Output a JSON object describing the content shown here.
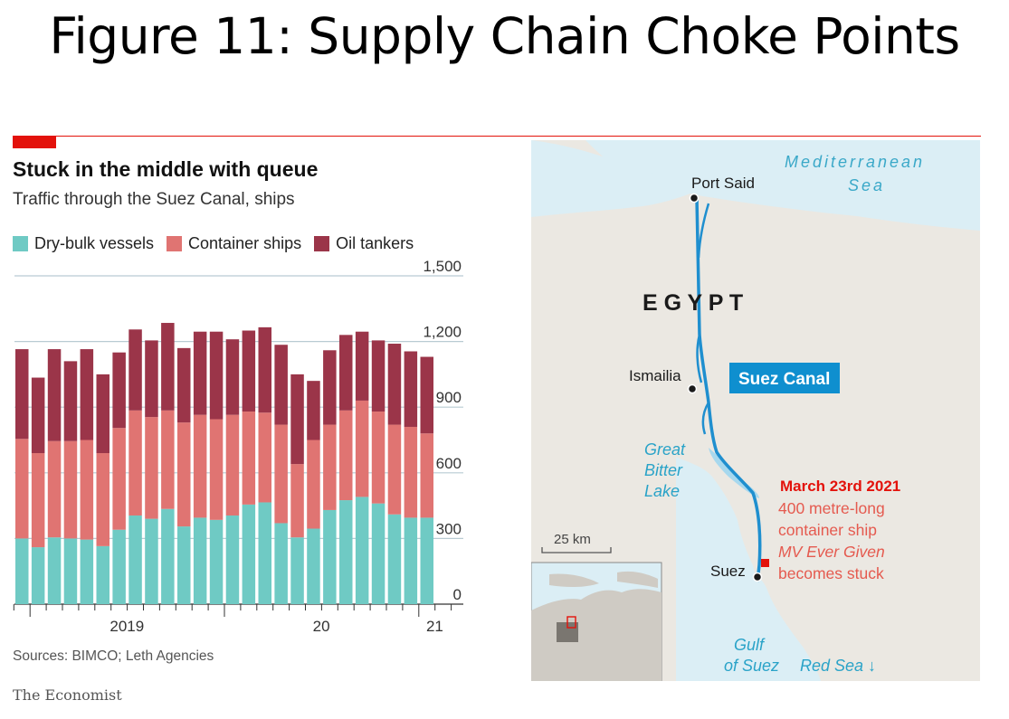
{
  "slide_title": "Figure 11: Supply Chain Choke Points",
  "colors": {
    "dry_bulk": "#6fcac4",
    "container": "#e07472",
    "oil": "#9b3549",
    "accent_red": "#e3120b",
    "canal_blue": "#1f8fcf",
    "land": "#ebe8e2",
    "sea": "#dbeef5"
  },
  "chart_data": {
    "type": "bar",
    "stacked": true,
    "title": "Stuck in the middle with queue",
    "subtitle": "Traffic through the Suez Canal, ships",
    "ylim": [
      0,
      1500
    ],
    "yticks": [
      "1,500",
      "1,200",
      "900",
      "600",
      "300",
      "0"
    ],
    "ytick_values": [
      1500,
      1200,
      900,
      600,
      300,
      0
    ],
    "xtick_labels": [
      {
        "label": "2019",
        "index": 7
      },
      {
        "label": "20",
        "index": 19
      },
      {
        "label": "21",
        "index": 26
      }
    ],
    "grid": true,
    "legend_placement": "top",
    "series": [
      {
        "name": "Dry-bulk vessels",
        "values": [
          300,
          260,
          305,
          300,
          295,
          265,
          340,
          405,
          390,
          435,
          355,
          395,
          385,
          405,
          455,
          465,
          370,
          305,
          345,
          430,
          475,
          490,
          460,
          410,
          395,
          395
        ]
      },
      {
        "name": "Container ships",
        "values": [
          455,
          430,
          440,
          445,
          455,
          425,
          465,
          480,
          465,
          450,
          475,
          470,
          460,
          460,
          425,
          410,
          450,
          335,
          405,
          390,
          410,
          440,
          420,
          410,
          415,
          385
        ]
      },
      {
        "name": "Oil tankers",
        "values": [
          410,
          345,
          420,
          365,
          415,
          360,
          345,
          370,
          350,
          400,
          340,
          380,
          400,
          345,
          370,
          390,
          365,
          410,
          270,
          340,
          345,
          315,
          325,
          370,
          345,
          350
        ]
      }
    ]
  },
  "sources": "Sources: BIMCO; Leth Agencies",
  "brand": "The Economist",
  "map": {
    "sea_label_1": "Mediterranean",
    "sea_label_2": "Sea",
    "country": "E G Y P T",
    "city_port_said": "Port Said",
    "city_ismailia": "Ismailia",
    "city_suez": "Suez",
    "canal_label": "Suez Canal",
    "lake_1": "Great",
    "lake_2": "Bitter",
    "lake_3": "Lake",
    "event_date": "March 23rd 2021",
    "event_line_1": "400 metre-long",
    "event_line_2": "container ship",
    "event_line_3": "MV Ever Given",
    "event_line_4": "becomes stuck",
    "scale": "25 km",
    "gulf_1": "Gulf",
    "gulf_2": "of Suez",
    "red_sea": "Red Sea ↓"
  }
}
